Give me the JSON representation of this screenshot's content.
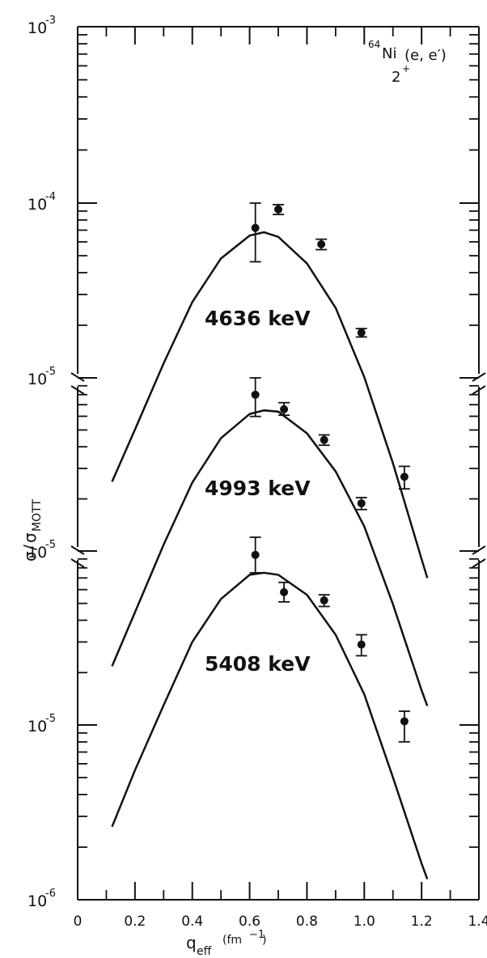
{
  "chart_data": {
    "type": "scatter",
    "annotation": {
      "mass_number": "64",
      "nucleus": "Ni",
      "reaction": "(e, e′)",
      "state_main": "2",
      "state_sup": "+"
    },
    "xlabel": {
      "main": "q",
      "sub": "eff",
      "unit_main": "(fm",
      "unit_sup": "−1",
      "unit_close": ")"
    },
    "ylabel": {
      "sigma": "σ",
      "slash": "/",
      "sigma2": "σ",
      "sub": "MOTT"
    },
    "xlim": [
      0,
      1.4
    ],
    "x_ticks": [
      "0",
      "0.2",
      "0.4",
      "0.6",
      "0.8",
      "1.0",
      "1.2",
      "1.4"
    ],
    "y_scale": "log",
    "y_decade_labels": [
      {
        "base": "10",
        "exp": "-3"
      },
      {
        "base": "10",
        "exp": "-4"
      },
      {
        "base": "10",
        "exp": "-5"
      },
      {
        "base": "10",
        "exp": "-5"
      },
      {
        "base": "10",
        "exp": "-5"
      },
      {
        "base": "10",
        "exp": "-6"
      }
    ],
    "axis_breaks": true,
    "series": [
      {
        "name": "4636 keV",
        "points": [
          {
            "x": 0.62,
            "y": 7.2e-05,
            "err_lo": 4.6e-05,
            "err_hi": 0.0001
          },
          {
            "x": 0.7,
            "y": 9.2e-05,
            "err_lo": 8.6e-05,
            "err_hi": 9.8e-05
          },
          {
            "x": 0.85,
            "y": 5.8e-05,
            "err_lo": 5.4e-05,
            "err_hi": 6.2e-05
          },
          {
            "x": 0.99,
            "y": 1.8e-05,
            "err_lo": 1.7e-05,
            "err_hi": 1.9e-05
          }
        ],
        "curve": [
          [
            0.12,
            2.5e-06
          ],
          [
            0.2,
            5e-06
          ],
          [
            0.3,
            1.2e-05
          ],
          [
            0.4,
            2.7e-05
          ],
          [
            0.5,
            4.8e-05
          ],
          [
            0.6,
            6.5e-05
          ],
          [
            0.65,
            6.8e-05
          ],
          [
            0.7,
            6.4e-05
          ],
          [
            0.8,
            4.5e-05
          ],
          [
            0.9,
            2.5e-05
          ],
          [
            1.0,
            1e-05
          ],
          [
            1.1,
            3.2e-06
          ],
          [
            1.2,
            9e-07
          ],
          [
            1.22,
            7e-07
          ]
        ]
      },
      {
        "name": "4993 keV",
        "points": [
          {
            "x": 0.62,
            "y": 8e-05,
            "err_lo": 6e-05,
            "err_hi": 0.0001
          },
          {
            "x": 0.72,
            "y": 6.6e-05,
            "err_lo": 6.1e-05,
            "err_hi": 7.2e-05
          },
          {
            "x": 0.86,
            "y": 4.4e-05,
            "err_lo": 4.1e-05,
            "err_hi": 4.7e-05
          },
          {
            "x": 0.99,
            "y": 1.9e-05,
            "err_lo": 1.75e-05,
            "err_hi": 2.05e-05
          },
          {
            "x": 1.14,
            "y": 2.7e-05,
            "err_lo": 2.3e-05,
            "err_hi": 3.1e-05
          }
        ],
        "curve": [
          [
            0.12,
            2.2e-06
          ],
          [
            0.2,
            4.5e-06
          ],
          [
            0.3,
            1.1e-05
          ],
          [
            0.4,
            2.5e-05
          ],
          [
            0.5,
            4.5e-05
          ],
          [
            0.6,
            6.2e-05
          ],
          [
            0.65,
            6.5e-05
          ],
          [
            0.7,
            6.4e-05
          ],
          [
            0.8,
            4.8e-05
          ],
          [
            0.9,
            2.9e-05
          ],
          [
            1.0,
            1.4e-05
          ],
          [
            1.1,
            5e-06
          ],
          [
            1.2,
            1.6e-06
          ],
          [
            1.22,
            1.3e-06
          ]
        ]
      },
      {
        "name": "5408 keV",
        "points": [
          {
            "x": 0.62,
            "y": 9.5e-05,
            "err_lo": 7.5e-05,
            "err_hi": 0.00012
          },
          {
            "x": 0.72,
            "y": 5.8e-05,
            "err_lo": 5.1e-05,
            "err_hi": 6.6e-05
          },
          {
            "x": 0.86,
            "y": 5.2e-05,
            "err_lo": 4.8e-05,
            "err_hi": 5.6e-05
          },
          {
            "x": 0.99,
            "y": 2.9e-05,
            "err_lo": 2.5e-05,
            "err_hi": 3.3e-05
          },
          {
            "x": 1.14,
            "y": 1.05e-05,
            "err_lo": 8e-06,
            "err_hi": 1.2e-05
          }
        ],
        "curve": [
          [
            0.12,
            2.6e-06
          ],
          [
            0.2,
            5.5e-06
          ],
          [
            0.3,
            1.3e-05
          ],
          [
            0.4,
            3e-05
          ],
          [
            0.5,
            5.3e-05
          ],
          [
            0.6,
            7.3e-05
          ],
          [
            0.65,
            7.5e-05
          ],
          [
            0.7,
            7.3e-05
          ],
          [
            0.8,
            5.6e-05
          ],
          [
            0.9,
            3.3e-05
          ],
          [
            1.0,
            1.5e-05
          ],
          [
            1.1,
            5e-06
          ],
          [
            1.2,
            1.6e-06
          ],
          [
            1.22,
            1.3e-06
          ]
        ]
      }
    ]
  }
}
